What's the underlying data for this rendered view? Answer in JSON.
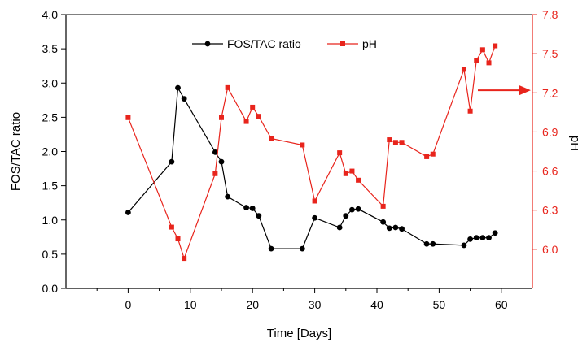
{
  "chart_data": {
    "type": "line",
    "title": "",
    "xlabel": "Time [Days]",
    "xlim": [
      -10,
      65
    ],
    "xticks": [
      0,
      10,
      20,
      30,
      40,
      50,
      60
    ],
    "xtick_labels": [
      "0",
      "10",
      "20",
      "30",
      "40",
      "50",
      "60"
    ],
    "y_left": {
      "label": "FOS/TAC ratio",
      "lim": [
        0,
        4
      ],
      "ticks": [
        0,
        0.5,
        1,
        1.5,
        2,
        2.5,
        3,
        3.5,
        4
      ],
      "tick_labels": [
        "0.0",
        "0.5",
        "1.0",
        "1.5",
        "2.0",
        "2.5",
        "3.0",
        "3.5",
        "4.0"
      ],
      "color": "#000000"
    },
    "y_right": {
      "label": "pH",
      "lim": [
        5.7,
        7.8
      ],
      "ticks": [
        6.0,
        6.3,
        6.6,
        6.9,
        7.2,
        7.5,
        7.8
      ],
      "tick_labels": [
        "6.0",
        "6.3",
        "6.6",
        "6.9",
        "7.2",
        "7.5",
        "7.8"
      ],
      "color": "#e8241c"
    },
    "grid": false,
    "legend_position": "top-center",
    "series": [
      {
        "name": "FOS/TAC ratio",
        "axis": "left",
        "color": "#000000",
        "marker": "circle",
        "x": [
          0,
          7,
          8,
          9,
          14,
          15,
          16,
          19,
          20,
          21,
          23,
          28,
          30,
          34,
          35,
          36,
          37,
          41,
          42,
          43,
          44,
          48,
          49,
          54,
          55,
          56,
          57,
          58,
          59
        ],
        "y": [
          1.11,
          1.85,
          2.93,
          2.77,
          1.99,
          1.85,
          1.34,
          1.18,
          1.17,
          1.06,
          0.58,
          0.58,
          1.03,
          0.89,
          1.06,
          1.15,
          1.16,
          0.97,
          0.88,
          0.89,
          0.87,
          0.65,
          0.65,
          0.63,
          0.72,
          0.74,
          0.74,
          0.74,
          0.81
        ]
      },
      {
        "name": "pH",
        "axis": "right",
        "color": "#e8241c",
        "marker": "square",
        "x": [
          0,
          7,
          8,
          9,
          14,
          15,
          16,
          19,
          20,
          21,
          23,
          28,
          30,
          34,
          35,
          36,
          37,
          41,
          42,
          43,
          44,
          48,
          49,
          54,
          55,
          56,
          57,
          58,
          59
        ],
        "y": [
          7.01,
          6.17,
          6.08,
          5.93,
          6.58,
          7.01,
          7.24,
          6.98,
          7.09,
          7.02,
          6.85,
          6.8,
          6.37,
          6.74,
          6.58,
          6.6,
          6.53,
          6.33,
          6.84,
          6.82,
          6.82,
          6.71,
          6.73,
          7.38,
          7.06,
          7.45,
          7.53,
          7.43,
          7.56
        ]
      }
    ],
    "annotations": [
      {
        "type": "arrow",
        "direction": "right",
        "at_y": 7.22,
        "axis": "right",
        "color": "#e8241c"
      }
    ]
  }
}
